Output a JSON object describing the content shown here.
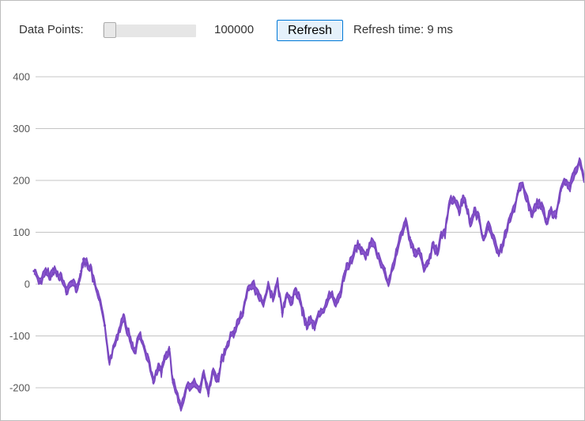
{
  "toolbar": {
    "data_points_label": "Data Points:",
    "data_points_value": "100000",
    "slider_position": 0,
    "refresh_label": "Refresh",
    "refresh_time_label": "Refresh time: 9 ms",
    "button_border_color": "#0078d7",
    "button_fill_color": "#e5f1fb"
  },
  "chart_data": {
    "type": "line",
    "title": "",
    "xlabel": "",
    "ylabel": "",
    "ylim": [
      -250,
      420
    ],
    "y_ticks": [
      400,
      300,
      200,
      100,
      0,
      -100,
      -200
    ],
    "y_tick_labels": [
      "400",
      "300",
      "200",
      "100",
      "0",
      "-100",
      "-200"
    ],
    "grid": true,
    "legend": "none",
    "series_color": "#7a48c0",
    "band_fill_color": "#8a55cf",
    "series": [
      {
        "x": [
          0,
          8,
          15,
          21,
          25,
          30,
          35,
          41,
          48,
          53,
          57,
          60,
          63,
          67,
          72,
          77,
          83,
          90,
          96,
          102,
          108,
          114,
          118,
          123,
          128,
          134,
          140,
          146,
          152,
          158,
          162,
          167,
          172,
          177,
          182,
          187,
          194,
          202,
          210,
          216,
          222,
          228,
          234,
          238,
          242,
          246,
          250,
          254,
          258,
          262,
          266,
          272,
          278,
          285,
          292,
          298,
          304,
          310,
          316,
          322,
          328,
          333,
          338,
          342,
          347,
          352,
          357,
          362,
          368,
          373,
          378,
          384,
          390,
          396,
          402,
          407,
          412,
          417,
          422,
          428,
          434,
          440,
          446,
          451,
          456,
          462,
          468,
          473,
          478,
          484,
          490,
          496,
          502,
          508,
          513,
          518,
          523,
          529,
          535,
          541,
          546,
          550,
          555,
          560,
          566,
          572,
          578,
          584,
          590,
          595,
          600,
          605,
          610,
          616,
          622,
          628,
          634,
          640,
          646,
          652,
          658,
          664,
          670,
          676,
          682,
          688,
          694,
          700
        ],
        "y": [
          25,
          5,
          22,
          15,
          28,
          20,
          12,
          -15,
          5,
          -5,
          0,
          25,
          48,
          40,
          30,
          0,
          -30,
          -80,
          -150,
          -120,
          -90,
          -60,
          -85,
          -110,
          -130,
          -100,
          -120,
          -150,
          -190,
          -160,
          -170,
          -140,
          -125,
          -190,
          -210,
          -240,
          -200,
          -190,
          -205,
          -175,
          -210,
          -170,
          -185,
          -150,
          -135,
          -120,
          -100,
          -95,
          -80,
          -65,
          -55,
          -10,
          0,
          -20,
          -35,
          -5,
          -25,
          0,
          -55,
          -20,
          -35,
          -10,
          -30,
          -55,
          -80,
          -65,
          -85,
          -60,
          -55,
          -30,
          -20,
          -35,
          -15,
          25,
          40,
          60,
          75,
          65,
          50,
          80,
          70,
          45,
          30,
          0,
          30,
          65,
          100,
          120,
          90,
          55,
          65,
          30,
          40,
          80,
          60,
          95,
          100,
          160,
          165,
          140,
          170,
          150,
          120,
          140,
          130,
          85,
          110,
          95,
          60,
          70,
          100,
          125,
          140,
          180,
          190,
          160,
          135,
          155,
          150,
          120,
          140,
          130,
          180,
          200,
          190,
          215,
          235,
          200
        ]
      }
    ]
  }
}
